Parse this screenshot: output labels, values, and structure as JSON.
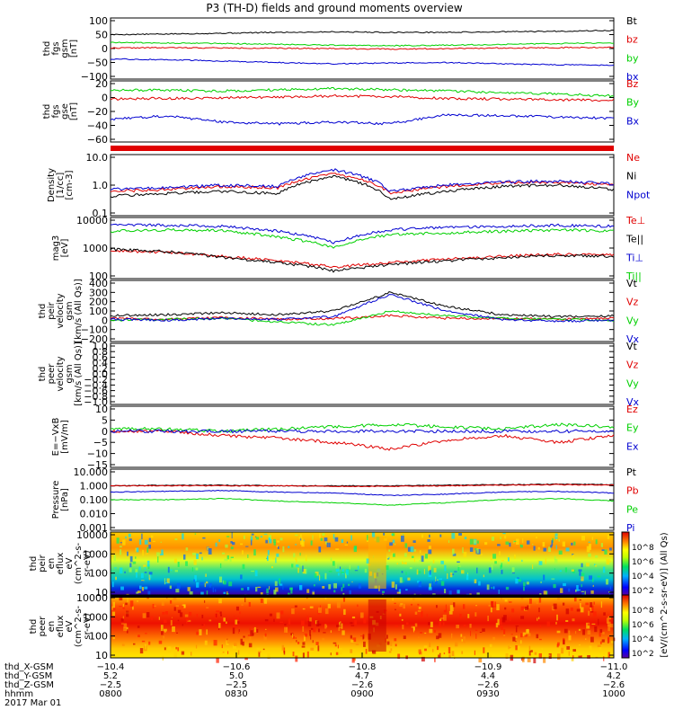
{
  "title": "P3 (TH-D) fields and ground moments overview",
  "colors": {
    "black": "#000000",
    "red": "#e00000",
    "green": "#00d000",
    "blue": "#0000d0"
  },
  "panels": [
    {
      "ylabel": [
        "thd",
        "fgs",
        "gsm",
        "[nT]"
      ],
      "ticks": [
        "100",
        "50",
        "0",
        "−50",
        "−100"
      ],
      "legend": [
        {
          "text": "Bt",
          "color": "black"
        },
        {
          "text": "bz",
          "color": "red"
        },
        {
          "text": "by",
          "color": "green"
        },
        {
          "text": "bx",
          "color": "blue"
        }
      ]
    },
    {
      "ylabel": [
        "thd",
        "fgs",
        "gse",
        "[nT]"
      ],
      "ticks": [
        "20",
        "0",
        "−20",
        "−40",
        "−60"
      ],
      "legend": [
        {
          "text": "Bz",
          "color": "red"
        },
        {
          "text": "By",
          "color": "green"
        },
        {
          "text": "Bx",
          "color": "blue"
        }
      ]
    },
    {
      "ylabel": [],
      "ticks": [],
      "legend": []
    },
    {
      "ylabel": [
        "Density",
        "[1/cc]",
        "[cm-3]"
      ],
      "ticks": [
        "10.0",
        "1.0",
        "0.1"
      ],
      "legend": [
        {
          "text": "Ne",
          "color": "red"
        },
        {
          "text": "Ni",
          "color": "black"
        },
        {
          "text": "Npot",
          "color": "blue"
        }
      ]
    },
    {
      "ylabel": [
        "mag3",
        "[eV]"
      ],
      "ticks": [
        "10000",
        "1000",
        "100"
      ],
      "legend": [
        {
          "text": "Te⊥",
          "color": "red"
        },
        {
          "text": "Te||",
          "color": "black"
        },
        {
          "text": "Ti⊥",
          "color": "blue"
        },
        {
          "text": "Ti||",
          "color": "green"
        }
      ]
    },
    {
      "ylabel": [
        "thd",
        "peir",
        "velocity",
        "gsm",
        "[km/s (All Qs)]"
      ],
      "ticks": [
        "400",
        "300",
        "200",
        "100",
        "0",
        "−100",
        "−200"
      ],
      "legend": [
        {
          "text": "Vt",
          "color": "black"
        },
        {
          "text": "Vz",
          "color": "red"
        },
        {
          "text": "Vy",
          "color": "green"
        },
        {
          "text": "Vx",
          "color": "blue"
        }
      ]
    },
    {
      "ylabel": [
        "thd",
        "peer",
        "velocity",
        "gsm",
        "[km/s (All Qs)]"
      ],
      "ticks": [
        "1.0",
        "0.8",
        "0.6",
        "0.4",
        "0.2",
        "0.0",
        "−0.2",
        "−0.4",
        "−0.6",
        "−0.8",
        "−1.0"
      ],
      "legend": [
        {
          "text": "Vt",
          "color": "black"
        },
        {
          "text": "Vz",
          "color": "red"
        },
        {
          "text": "Vy",
          "color": "green"
        },
        {
          "text": "Vx",
          "color": "blue"
        }
      ]
    },
    {
      "ylabel": [
        "E=−VxB",
        "[mV/m]"
      ],
      "ticks": [
        "10",
        "5",
        "0",
        "−5",
        "−10",
        "−15"
      ],
      "legend": [
        {
          "text": "Ez",
          "color": "red"
        },
        {
          "text": "Ey",
          "color": "green"
        },
        {
          "text": "Ex",
          "color": "blue"
        }
      ]
    },
    {
      "ylabel": [
        "Pressure",
        "[nPa]"
      ],
      "ticks": [
        "10.000",
        "1.000",
        "0.100",
        "0.010",
        "0.001"
      ],
      "legend": [
        {
          "text": "Pt",
          "color": "black"
        },
        {
          "text": "Pb",
          "color": "red"
        },
        {
          "text": "Pe",
          "color": "green"
        },
        {
          "text": "Pi",
          "color": "blue"
        }
      ]
    },
    {
      "ylabel": [
        "thd",
        "peir",
        "en",
        "eflux",
        "eV",
        "(cm^2-s-",
        "sr-eV)"
      ],
      "ticks": [
        "10000",
        "1000",
        "100",
        "10"
      ],
      "legend": []
    },
    {
      "ylabel": [
        "thd",
        "peer",
        "en",
        "eflux",
        "eV",
        "(cm^2-s-",
        "sr-eV)"
      ],
      "ticks": [
        "10000",
        "1000",
        "100",
        "10"
      ],
      "legend": []
    }
  ],
  "colorbar": {
    "label": "[eV/(cm^2-s-sr-eV)] (All Qs)",
    "top_ticks": [
      "10^8",
      "10^6",
      "10^4",
      "10^2"
    ],
    "bottom_ticks": [
      "10^8",
      "10^6",
      "10^4",
      "10^2"
    ]
  },
  "xaxis": {
    "row_labels": [
      "thd_X-GSM",
      "thd_Y-GSM",
      "thd_Z-GSM",
      "hhmm",
      "2017 Mar 01"
    ],
    "columns": [
      {
        "x": "−10.4",
        "y": "5.2",
        "z": "−2.5",
        "t": "0800"
      },
      {
        "x": "−10.6",
        "y": "5.0",
        "z": "−2.5",
        "t": "0830"
      },
      {
        "x": "−10.8",
        "y": "4.7",
        "z": "−2.6",
        "t": "0900"
      },
      {
        "x": "−10.9",
        "y": "4.4",
        "z": "−2.6",
        "t": "0930"
      },
      {
        "x": "−11.0",
        "y": "4.2",
        "z": "−2.6",
        "t": "1000"
      }
    ]
  },
  "chart_data": {
    "type": "line",
    "title": "P3 (TH-D) fields and ground moments overview",
    "x_time_range": [
      "0800",
      "1000"
    ],
    "panels": [
      {
        "name": "thd fgs gsm [nT]",
        "ylim": [
          -100,
          100
        ],
        "series": [
          {
            "name": "Bt",
            "values": [
              50,
              52,
              55,
              58,
              60,
              58,
              58,
              60,
              62,
              65
            ]
          },
          {
            "name": "bz",
            "values": [
              2,
              3,
              2,
              1,
              0,
              -2,
              0,
              2,
              3,
              4
            ]
          },
          {
            "name": "by",
            "values": [
              22,
              20,
              18,
              15,
              12,
              10,
              12,
              15,
              18,
              20
            ]
          },
          {
            "name": "bx",
            "values": [
              -38,
              -40,
              -45,
              -50,
              -55,
              -52,
              -50,
              -55,
              -58,
              -60
            ]
          }
        ]
      },
      {
        "name": "thd fgs gse [nT]",
        "ylim": [
          -70,
          20
        ],
        "series": [
          {
            "name": "Bz",
            "values": [
              -5,
              -4,
              -3,
              -2,
              0,
              -1,
              -4,
              -5,
              -6,
              -7
            ]
          },
          {
            "name": "By",
            "values": [
              10,
              9,
              8,
              10,
              12,
              10,
              8,
              5,
              3,
              0
            ]
          },
          {
            "name": "Bx",
            "values": [
              -38,
              -32,
              -42,
              -45,
              -42,
              -45,
              -30,
              -32,
              -34,
              -36
            ]
          }
        ]
      },
      {
        "name": "Density [cm-3]",
        "scale": "log",
        "ylim": [
          0.1,
          10
        ],
        "series": [
          {
            "name": "Ne",
            "values": [
              0.6,
              0.7,
              0.9,
              0.8,
              2.5,
              0.5,
              0.9,
              1.2,
              1.3,
              1.0
            ]
          },
          {
            "name": "Ni",
            "values": [
              0.4,
              0.5,
              0.6,
              0.5,
              2.0,
              0.3,
              0.6,
              0.9,
              1.0,
              0.7
            ]
          },
          {
            "name": "Npot",
            "values": [
              0.7,
              0.8,
              1.0,
              0.9,
              3.5,
              0.6,
              1.0,
              1.3,
              1.4,
              1.1
            ]
          }
        ]
      },
      {
        "name": "mag3 [eV]",
        "scale": "log",
        "ylim": [
          100,
          10000
        ],
        "series": [
          {
            "name": "Te⊥",
            "values": [
              800,
              700,
              500,
              350,
              200,
              300,
              400,
              500,
              600,
              550
            ]
          },
          {
            "name": "Te||",
            "values": [
              900,
              750,
              450,
              300,
              150,
              250,
              350,
              450,
              550,
              500
            ]
          },
          {
            "name": "Ti⊥",
            "values": [
              7000,
              6500,
              6000,
              4000,
              1500,
              4500,
              5500,
              6000,
              6500,
              6000
            ]
          },
          {
            "name": "Ti||",
            "values": [
              4000,
              4500,
              4200,
              2500,
              1000,
              3000,
              3500,
              4000,
              4500,
              4000
            ]
          }
        ]
      },
      {
        "name": "thd peir velocity gsm [km/s (All Qs)]",
        "ylim": [
          -200,
          400
        ],
        "series": [
          {
            "name": "Vt",
            "values": [
              50,
              60,
              80,
              60,
              100,
              300,
              150,
              60,
              40,
              50
            ]
          },
          {
            "name": "Vz",
            "values": [
              20,
              10,
              30,
              10,
              20,
              50,
              20,
              20,
              10,
              20
            ]
          },
          {
            "name": "Vy",
            "values": [
              0,
              10,
              20,
              -20,
              -50,
              100,
              50,
              20,
              10,
              0
            ]
          },
          {
            "name": "Vx",
            "values": [
              10,
              0,
              20,
              10,
              40,
              280,
              100,
              10,
              -10,
              0
            ]
          }
        ]
      },
      {
        "name": "E=−VxB [mV/m]",
        "ylim": [
          -15,
          10
        ],
        "series": [
          {
            "name": "Ez",
            "values": [
              0,
              0,
              -2,
              -3,
              -5,
              -8,
              -4,
              -2,
              -5,
              -2
            ]
          },
          {
            "name": "Ey",
            "values": [
              1,
              1,
              0,
              1,
              2,
              3,
              2,
              1,
              3,
              2
            ]
          },
          {
            "name": "Ex",
            "values": [
              0,
              0,
              0,
              0,
              0,
              0,
              0,
              0,
              0,
              0
            ]
          }
        ]
      },
      {
        "name": "Pressure [nPa]",
        "scale": "log",
        "ylim": [
          0.001,
          10
        ],
        "series": [
          {
            "name": "Pt",
            "values": [
              1.0,
              1.1,
              1.1,
              1.0,
              1.0,
              1.0,
              1.1,
              1.2,
              1.3,
              1.2
            ]
          },
          {
            "name": "Pb",
            "values": [
              1.0,
              1.0,
              1.0,
              1.0,
              0.9,
              0.9,
              1.0,
              1.1,
              1.2,
              1.1
            ]
          },
          {
            "name": "Pe",
            "values": [
              0.1,
              0.1,
              0.12,
              0.08,
              0.06,
              0.04,
              0.06,
              0.1,
              0.12,
              0.08
            ]
          },
          {
            "name": "Pi",
            "values": [
              0.35,
              0.4,
              0.45,
              0.35,
              0.3,
              0.2,
              0.25,
              0.35,
              0.4,
              0.3
            ]
          }
        ]
      }
    ]
  }
}
